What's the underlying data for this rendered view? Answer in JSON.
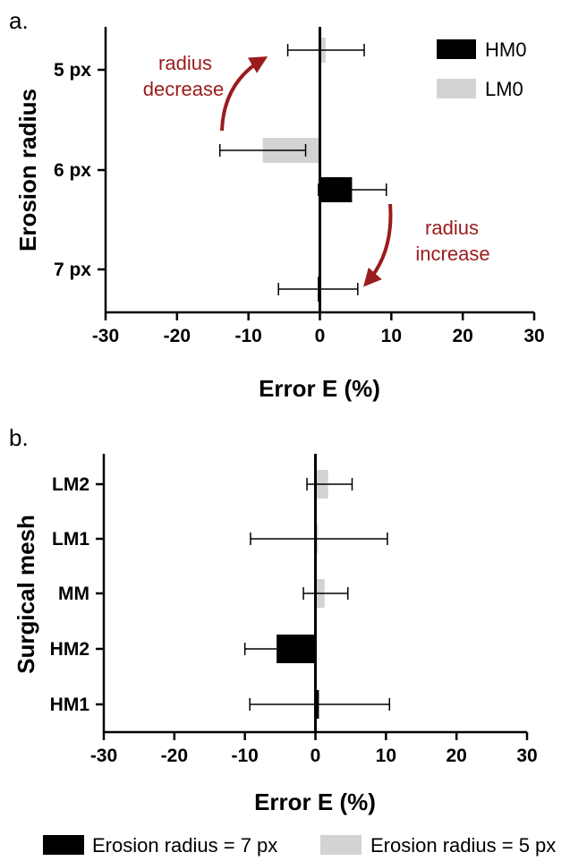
{
  "chart_data": [
    {
      "panel": "a.",
      "type": "bar",
      "orientation": "horizontal",
      "categories": [
        "5 px",
        "6 px",
        "7 px"
      ],
      "series": [
        {
          "name": "HM0",
          "color": "#000000",
          "values": [
            null,
            4.5,
            -0.3
          ],
          "err_low": [
            null,
            -0.2,
            -5.8
          ],
          "err_high": [
            null,
            9.3,
            5.3
          ]
        },
        {
          "name": "LM0",
          "color": "#d3d3d3",
          "values": [
            0.8,
            -8.0,
            null
          ],
          "err_low": [
            -4.5,
            -14.0,
            null
          ],
          "err_high": [
            6.2,
            -2.0,
            null
          ]
        }
      ],
      "xlabel": "Error  E (%)",
      "ylabel": "Erosion radius",
      "xlim": [
        -30,
        30
      ],
      "xticks": [
        "-30",
        "-20",
        "-10",
        "0",
        "10",
        "20",
        "30"
      ],
      "legend_position": "top-right",
      "annotations": [
        {
          "lines": [
            "radius",
            "decrease"
          ],
          "color": "#9b1c1c"
        },
        {
          "lines": [
            "radius",
            "increase"
          ],
          "color": "#9b1c1c"
        }
      ]
    },
    {
      "panel": "b.",
      "type": "bar",
      "orientation": "horizontal",
      "categories": [
        "LM2",
        "LM1",
        "MM",
        "HM2",
        "HM1"
      ],
      "series": [
        {
          "name": "Erosion radius = 7 px",
          "color": "#000000",
          "values": [
            null,
            null,
            null,
            -5.5,
            0.5
          ],
          "err_low": [
            null,
            null,
            null,
            -10.0,
            -9.3
          ],
          "err_high": [
            null,
            null,
            null,
            null,
            10.5
          ]
        },
        {
          "name": "Erosion radius = 5 px",
          "color": "#d3d3d3",
          "values": [
            1.8,
            0.3,
            1.3,
            null,
            null
          ],
          "err_low": [
            -1.2,
            -9.2,
            -1.7,
            null,
            null
          ],
          "err_high": [
            5.2,
            10.2,
            4.6,
            null,
            null
          ]
        }
      ],
      "xlabel": "Error  E (%)",
      "ylabel": "Surgical mesh",
      "xlim": [
        -30,
        30
      ],
      "xticks": [
        "-30",
        "-20",
        "-10",
        "0",
        "10",
        "20",
        "30"
      ],
      "legend_position": "bottom"
    }
  ]
}
